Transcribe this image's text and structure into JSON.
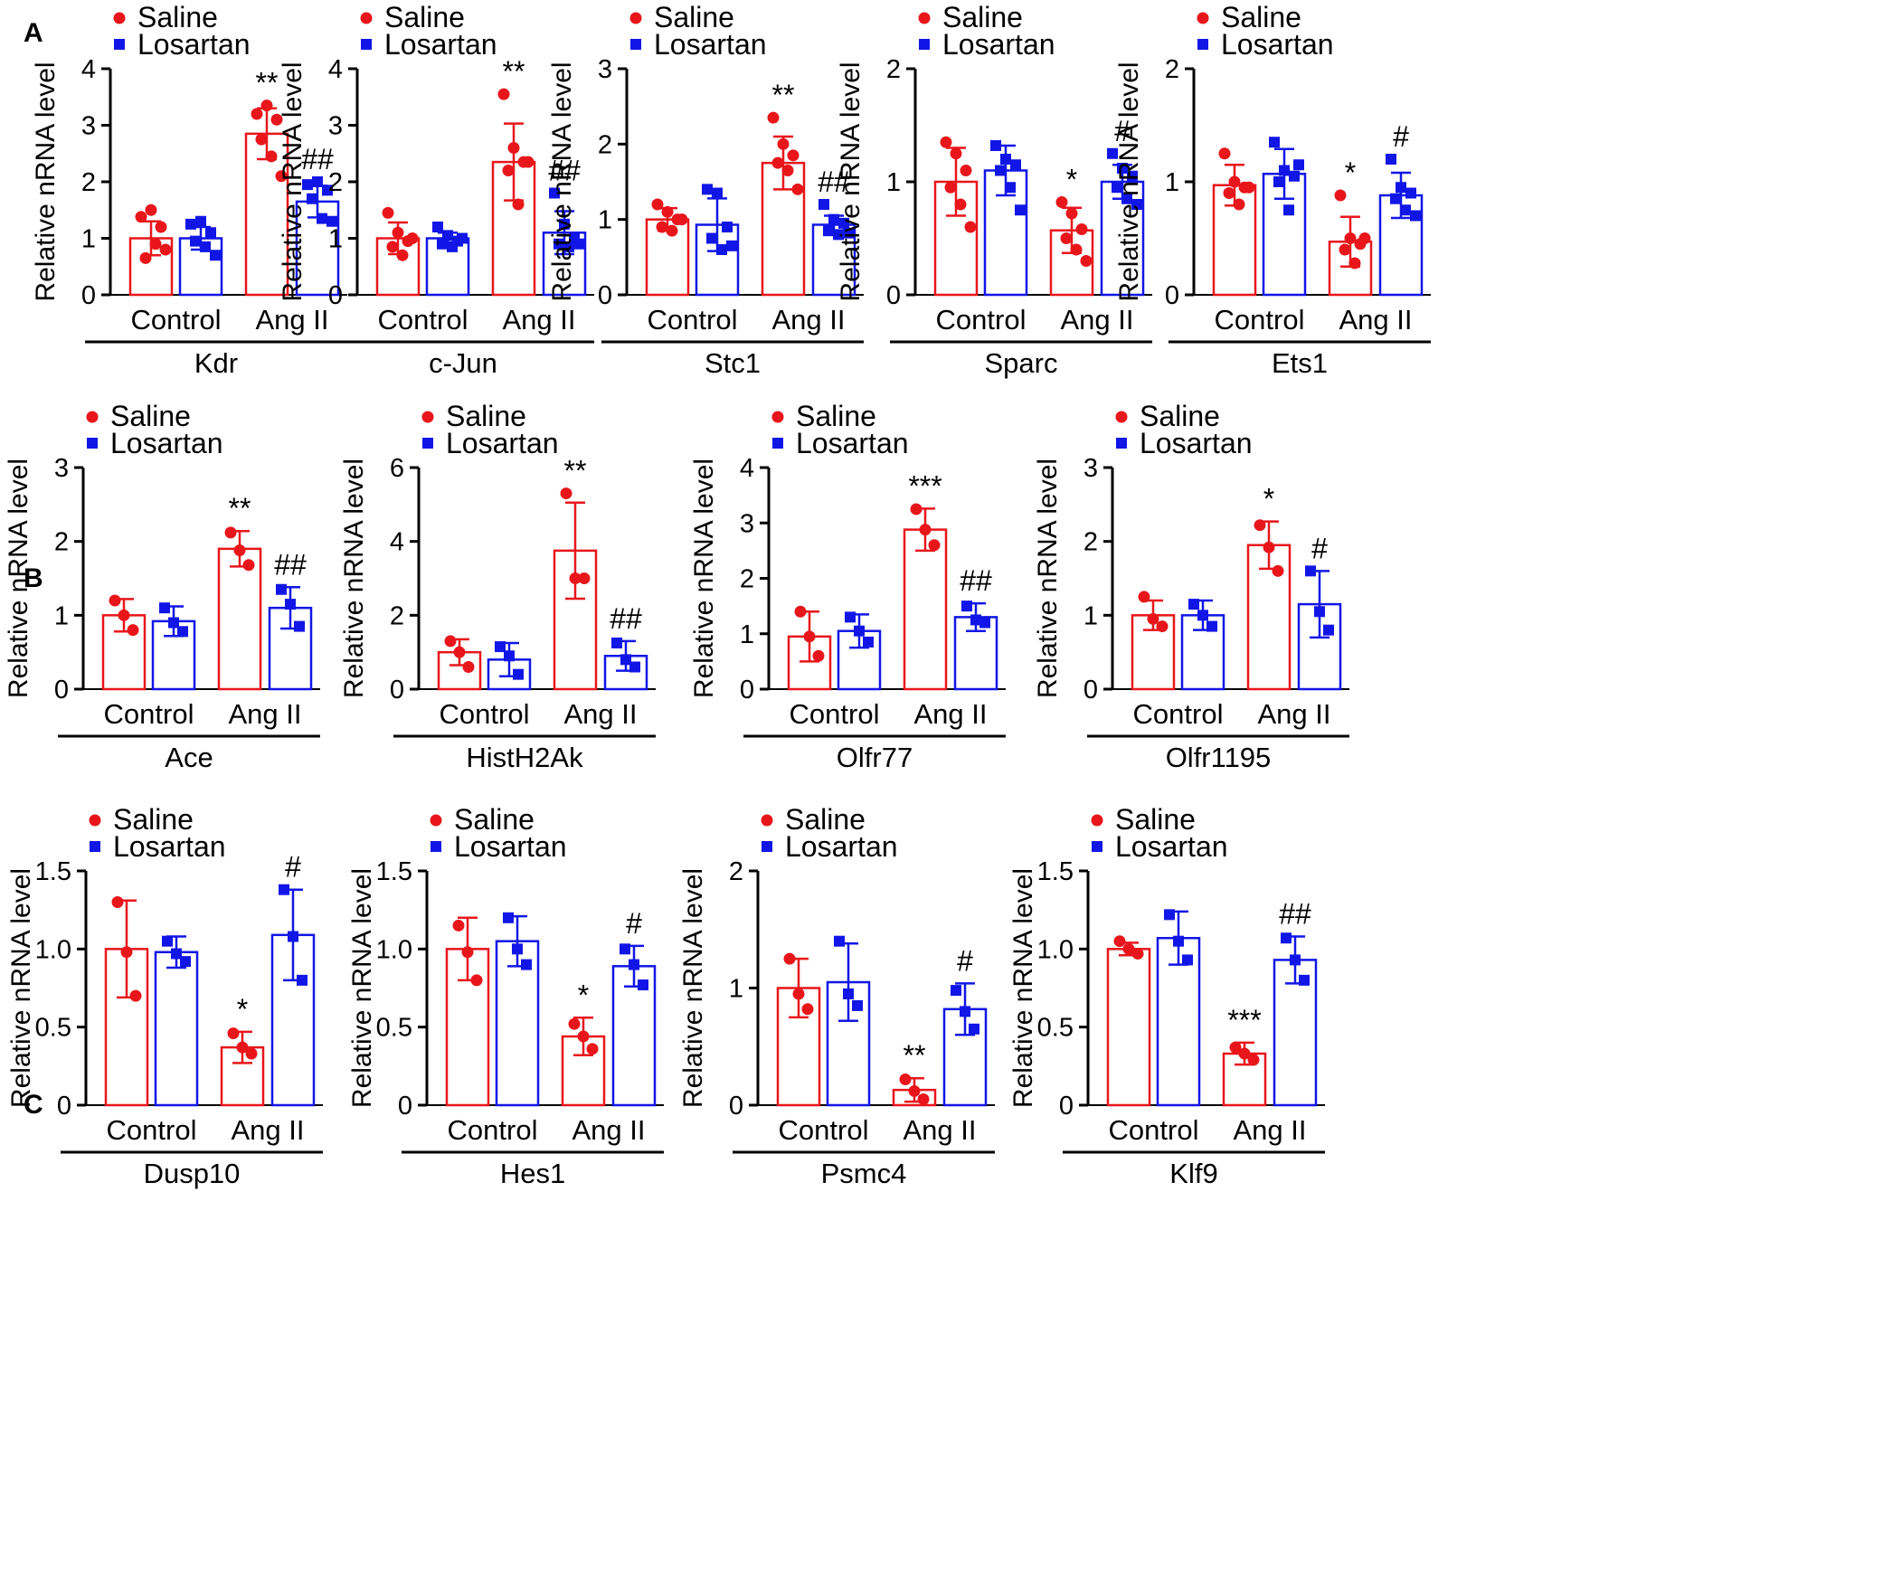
{
  "panels": [
    {
      "label": "A"
    },
    {
      "label": "B"
    },
    {
      "label": "C"
    }
  ],
  "legend": {
    "saline": "Saline",
    "losartan": "Losartan"
  },
  "colors": {
    "saline": "#e8161b",
    "losartan": "#1116e6",
    "axis": "#000000"
  },
  "chart_data": [
    {
      "type": "bar",
      "panel": "A",
      "gene": "Kdr",
      "ylabel": "Relative nRNA level",
      "categories": [
        "Control",
        "Ang II"
      ],
      "ylim": [
        0,
        4
      ],
      "yticks": [
        0,
        1,
        2,
        3,
        4
      ],
      "series": [
        {
          "name": "Saline",
          "means": [
            1.0,
            2.85
          ],
          "sd": [
            0.3,
            0.45
          ],
          "points": [
            [
              1.38,
              1.5,
              1.2,
              0.65,
              0.9,
              0.8
            ],
            [
              3.2,
              3.35,
              3.1,
              2.75,
              2.45,
              2.1
            ]
          ]
        },
        {
          "name": "Losartan",
          "means": [
            1.0,
            1.65
          ],
          "sd": [
            0.2,
            0.28
          ],
          "points": [
            [
              1.25,
              1.3,
              1.1,
              0.95,
              0.85,
              0.7
            ],
            [
              1.95,
              2.0,
              1.85,
              1.7,
              1.35,
              1.3
            ]
          ]
        }
      ],
      "annotations": [
        {
          "series": "Saline",
          "category": "Ang II",
          "text": "**"
        },
        {
          "series": "Losartan",
          "category": "Ang II",
          "text": "##"
        }
      ]
    },
    {
      "type": "bar",
      "panel": "A",
      "gene": "c-Jun",
      "ylabel": "Relative nRNA level",
      "categories": [
        "Control",
        "Ang II"
      ],
      "ylim": [
        0,
        4
      ],
      "yticks": [
        0,
        1,
        2,
        3,
        4
      ],
      "series": [
        {
          "name": "Saline",
          "means": [
            1.0,
            2.35
          ],
          "sd": [
            0.28,
            0.68
          ],
          "points": [
            [
              1.45,
              1.1,
              0.95,
              0.85,
              0.7,
              1.0
            ],
            [
              3.55,
              2.6,
              2.35,
              2.2,
              1.6,
              2.35
            ]
          ]
        },
        {
          "name": "Losartan",
          "means": [
            1.0,
            1.1
          ],
          "sd": [
            0.1,
            0.38
          ],
          "points": [
            [
              1.2,
              1.05,
              0.95,
              0.9,
              0.85,
              1.0
            ],
            [
              1.8,
              1.25,
              1.0,
              0.9,
              0.85,
              0.9
            ]
          ]
        }
      ],
      "annotations": [
        {
          "series": "Saline",
          "category": "Ang II",
          "text": "**"
        },
        {
          "series": "Losartan",
          "category": "Ang II",
          "text": "##"
        }
      ]
    },
    {
      "type": "bar",
      "panel": "A",
      "gene": "Stc1",
      "ylabel": "Relative nRNA level",
      "categories": [
        "Control",
        "Ang II"
      ],
      "ylim": [
        0,
        3
      ],
      "yticks": [
        0,
        1,
        2,
        3
      ],
      "series": [
        {
          "name": "Saline",
          "means": [
            1.0,
            1.75
          ],
          "sd": [
            0.15,
            0.35
          ],
          "points": [
            [
              1.2,
              1.1,
              1.0,
              0.9,
              0.85,
              1.0
            ],
            [
              2.35,
              2.0,
              1.85,
              1.75,
              1.65,
              1.4
            ]
          ]
        },
        {
          "name": "Losartan",
          "means": [
            0.93,
            0.93
          ],
          "sd": [
            0.35,
            0.12
          ],
          "points": [
            [
              1.4,
              1.35,
              0.9,
              0.75,
              0.6,
              0.65
            ],
            [
              1.2,
              1.0,
              0.95,
              0.85,
              0.8,
              0.82
            ]
          ]
        }
      ],
      "annotations": [
        {
          "series": "Saline",
          "category": "Ang II",
          "text": "**"
        },
        {
          "series": "Losartan",
          "category": "Ang II",
          "text": "##"
        }
      ]
    },
    {
      "type": "bar",
      "panel": "A",
      "gene": "Sparc",
      "ylabel": "Relative nRNA level",
      "categories": [
        "Control",
        "Ang II"
      ],
      "ylim": [
        0,
        2
      ],
      "yticks": [
        0,
        1,
        2
      ],
      "series": [
        {
          "name": "Saline",
          "means": [
            1.0,
            0.57
          ],
          "sd": [
            0.3,
            0.2
          ],
          "points": [
            [
              1.35,
              1.25,
              1.1,
              0.95,
              0.8,
              0.6
            ],
            [
              0.82,
              0.72,
              0.58,
              0.5,
              0.4,
              0.3
            ]
          ]
        },
        {
          "name": "Losartan",
          "means": [
            1.1,
            1.0
          ],
          "sd": [
            0.22,
            0.15
          ],
          "points": [
            [
              1.32,
              1.2,
              1.15,
              1.1,
              0.95,
              0.75
            ],
            [
              1.25,
              1.12,
              1.05,
              0.95,
              0.85,
              0.8
            ]
          ]
        }
      ],
      "annotations": [
        {
          "series": "Saline",
          "category": "Ang II",
          "text": "*"
        },
        {
          "series": "Losartan",
          "category": "Ang II",
          "text": "#"
        }
      ]
    },
    {
      "type": "bar",
      "panel": "A",
      "gene": "Ets1",
      "ylabel": "Relative nRNA level",
      "categories": [
        "Control",
        "Ang II"
      ],
      "ylim": [
        0,
        2
      ],
      "yticks": [
        0,
        1,
        2
      ],
      "series": [
        {
          "name": "Saline",
          "means": [
            0.97,
            0.47
          ],
          "sd": [
            0.18,
            0.22
          ],
          "points": [
            [
              1.25,
              1.0,
              0.95,
              0.9,
              0.8,
              0.95
            ],
            [
              0.88,
              0.5,
              0.45,
              0.4,
              0.28,
              0.5
            ]
          ]
        },
        {
          "name": "Losartan",
          "means": [
            1.07,
            0.88
          ],
          "sd": [
            0.22,
            0.2
          ],
          "points": [
            [
              1.35,
              1.1,
              1.05,
              1.0,
              0.75,
              1.15
            ],
            [
              1.2,
              0.95,
              0.9,
              0.85,
              0.75,
              0.7
            ]
          ]
        }
      ],
      "annotations": [
        {
          "series": "Saline",
          "category": "Ang II",
          "text": "*"
        },
        {
          "series": "Losartan",
          "category": "Ang II",
          "text": "#"
        }
      ]
    },
    {
      "type": "bar",
      "panel": "B",
      "gene": "Ace",
      "ylabel": "Relative nRNA level",
      "categories": [
        "Control",
        "Ang II"
      ],
      "ylim": [
        0,
        3
      ],
      "yticks": [
        0,
        1,
        2,
        3
      ],
      "series": [
        {
          "name": "Saline",
          "means": [
            1.0,
            1.9
          ],
          "sd": [
            0.22,
            0.24
          ],
          "points": [
            [
              1.2,
              1.0,
              0.8
            ],
            [
              2.12,
              1.88,
              1.68
            ]
          ]
        },
        {
          "name": "Losartan",
          "means": [
            0.92,
            1.1
          ],
          "sd": [
            0.2,
            0.28
          ],
          "points": [
            [
              1.1,
              0.9,
              0.78
            ],
            [
              1.35,
              1.15,
              0.85
            ]
          ]
        }
      ],
      "annotations": [
        {
          "series": "Saline",
          "category": "Ang II",
          "text": "**"
        },
        {
          "series": "Losartan",
          "category": "Ang II",
          "text": "##"
        }
      ]
    },
    {
      "type": "bar",
      "panel": "B",
      "gene": "HistH2Ak",
      "ylabel": "Relative nRNA level",
      "categories": [
        "Control",
        "Ang II"
      ],
      "ylim": [
        0,
        6
      ],
      "yticks": [
        0,
        2,
        4,
        6
      ],
      "series": [
        {
          "name": "Saline",
          "means": [
            1.0,
            3.75
          ],
          "sd": [
            0.35,
            1.3
          ],
          "points": [
            [
              1.3,
              1.0,
              0.6
            ],
            [
              5.3,
              3.0,
              3.0
            ]
          ]
        },
        {
          "name": "Losartan",
          "means": [
            0.8,
            0.9
          ],
          "sd": [
            0.45,
            0.4
          ],
          "points": [
            [
              1.15,
              0.9,
              0.4
            ],
            [
              1.25,
              0.8,
              0.6
            ]
          ]
        }
      ],
      "annotations": [
        {
          "series": "Saline",
          "category": "Ang II",
          "text": "**"
        },
        {
          "series": "Losartan",
          "category": "Ang II",
          "text": "##"
        }
      ]
    },
    {
      "type": "bar",
      "panel": "B",
      "gene": "Olfr77",
      "ylabel": "Relative nRNA level",
      "categories": [
        "Control",
        "Ang II"
      ],
      "ylim": [
        0,
        4
      ],
      "yticks": [
        0,
        1,
        2,
        3,
        4
      ],
      "series": [
        {
          "name": "Saline",
          "means": [
            0.95,
            2.88
          ],
          "sd": [
            0.45,
            0.38
          ],
          "points": [
            [
              1.4,
              0.95,
              0.6
            ],
            [
              3.25,
              2.88,
              2.6
            ]
          ]
        },
        {
          "name": "Losartan",
          "means": [
            1.05,
            1.3
          ],
          "sd": [
            0.3,
            0.25
          ],
          "points": [
            [
              1.3,
              1.05,
              0.85
            ],
            [
              1.5,
              1.25,
              1.2
            ]
          ]
        }
      ],
      "annotations": [
        {
          "series": "Saline",
          "category": "Ang II",
          "text": "***"
        },
        {
          "series": "Losartan",
          "category": "Ang II",
          "text": "##"
        }
      ]
    },
    {
      "type": "bar",
      "panel": "B",
      "gene": "Olfr1195",
      "ylabel": "Relative nRNA level",
      "categories": [
        "Control",
        "Ang II"
      ],
      "ylim": [
        0,
        3
      ],
      "yticks": [
        0,
        1,
        2,
        3
      ],
      "series": [
        {
          "name": "Saline",
          "means": [
            1.0,
            1.95
          ],
          "sd": [
            0.2,
            0.32
          ],
          "points": [
            [
              1.25,
              0.95,
              0.85
            ],
            [
              2.22,
              1.92,
              1.6
            ]
          ]
        },
        {
          "name": "Losartan",
          "means": [
            1.0,
            1.15
          ],
          "sd": [
            0.2,
            0.45
          ],
          "points": [
            [
              1.15,
              1.0,
              0.85
            ],
            [
              1.6,
              1.05,
              0.8
            ]
          ]
        }
      ],
      "annotations": [
        {
          "series": "Saline",
          "category": "Ang II",
          "text": "*"
        },
        {
          "series": "Losartan",
          "category": "Ang II",
          "text": "#"
        }
      ]
    },
    {
      "type": "bar",
      "panel": "C",
      "gene": "Dusp10",
      "ylabel": "Relative nRNA level",
      "categories": [
        "Control",
        "Ang II"
      ],
      "ylim": [
        0,
        1.5
      ],
      "yticks": [
        "0",
        "0.5",
        "1.0",
        "1.5"
      ],
      "series": [
        {
          "name": "Saline",
          "means": [
            1.0,
            0.37
          ],
          "sd": [
            0.31,
            0.1
          ],
          "points": [
            [
              1.3,
              0.98,
              0.7
            ],
            [
              0.46,
              0.37,
              0.33
            ]
          ]
        },
        {
          "name": "Losartan",
          "means": [
            0.98,
            1.09
          ],
          "sd": [
            0.1,
            0.29
          ],
          "points": [
            [
              1.05,
              0.97,
              0.92
            ],
            [
              1.38,
              1.08,
              0.8
            ]
          ]
        }
      ],
      "annotations": [
        {
          "series": "Saline",
          "category": "Ang II",
          "text": "*"
        },
        {
          "series": "Losartan",
          "category": "Ang II",
          "text": "#"
        }
      ]
    },
    {
      "type": "bar",
      "panel": "C",
      "gene": "Hes1",
      "ylabel": "Relative nRNA level",
      "categories": [
        "Control",
        "Ang II"
      ],
      "ylim": [
        0,
        1.5
      ],
      "yticks": [
        "0",
        "0.5",
        "1.0",
        "1.5"
      ],
      "series": [
        {
          "name": "Saline",
          "means": [
            1.0,
            0.44
          ],
          "sd": [
            0.2,
            0.12
          ],
          "points": [
            [
              1.15,
              0.98,
              0.8
            ],
            [
              0.52,
              0.44,
              0.36
            ]
          ]
        },
        {
          "name": "Losartan",
          "means": [
            1.05,
            0.89
          ],
          "sd": [
            0.16,
            0.13
          ],
          "points": [
            [
              1.2,
              1.0,
              0.9
            ],
            [
              1.0,
              0.9,
              0.77
            ]
          ]
        }
      ],
      "annotations": [
        {
          "series": "Saline",
          "category": "Ang II",
          "text": "*"
        },
        {
          "series": "Losartan",
          "category": "Ang II",
          "text": "#"
        }
      ]
    },
    {
      "type": "bar",
      "panel": "C",
      "gene": "Psmc4",
      "ylabel": "Relative nRNA level",
      "categories": [
        "Control",
        "Ang II"
      ],
      "ylim": [
        0,
        2
      ],
      "yticks": [
        0,
        1,
        2
      ],
      "series": [
        {
          "name": "Saline",
          "means": [
            1.0,
            0.13
          ],
          "sd": [
            0.25,
            0.1
          ],
          "points": [
            [
              1.25,
              0.95,
              0.82
            ],
            [
              0.22,
              0.12,
              0.05
            ]
          ]
        },
        {
          "name": "Losartan",
          "means": [
            1.05,
            0.82
          ],
          "sd": [
            0.33,
            0.22
          ],
          "points": [
            [
              1.4,
              0.95,
              0.85
            ],
            [
              0.98,
              0.8,
              0.65
            ]
          ]
        }
      ],
      "annotations": [
        {
          "series": "Saline",
          "category": "Ang II",
          "text": "**"
        },
        {
          "series": "Losartan",
          "category": "Ang II",
          "text": "#"
        }
      ]
    },
    {
      "type": "bar",
      "panel": "C",
      "gene": "Klf9",
      "ylabel": "Relative nRNA level",
      "categories": [
        "Control",
        "Ang II"
      ],
      "ylim": [
        0,
        1.5
      ],
      "yticks": [
        "0",
        "0.5",
        "1.0",
        "1.5"
      ],
      "series": [
        {
          "name": "Saline",
          "means": [
            1.0,
            0.33
          ],
          "sd": [
            0.04,
            0.07
          ],
          "points": [
            [
              1.05,
              1.0,
              0.97
            ],
            [
              0.37,
              0.33,
              0.29
            ]
          ]
        },
        {
          "name": "Losartan",
          "means": [
            1.07,
            0.93
          ],
          "sd": [
            0.17,
            0.15
          ],
          "points": [
            [
              1.22,
              1.05,
              0.93
            ],
            [
              1.07,
              0.93,
              0.8
            ]
          ]
        }
      ],
      "annotations": [
        {
          "series": "Saline",
          "category": "Ang II",
          "text": "***"
        },
        {
          "series": "Losartan",
          "category": "Ang II",
          "text": "##"
        }
      ]
    }
  ]
}
